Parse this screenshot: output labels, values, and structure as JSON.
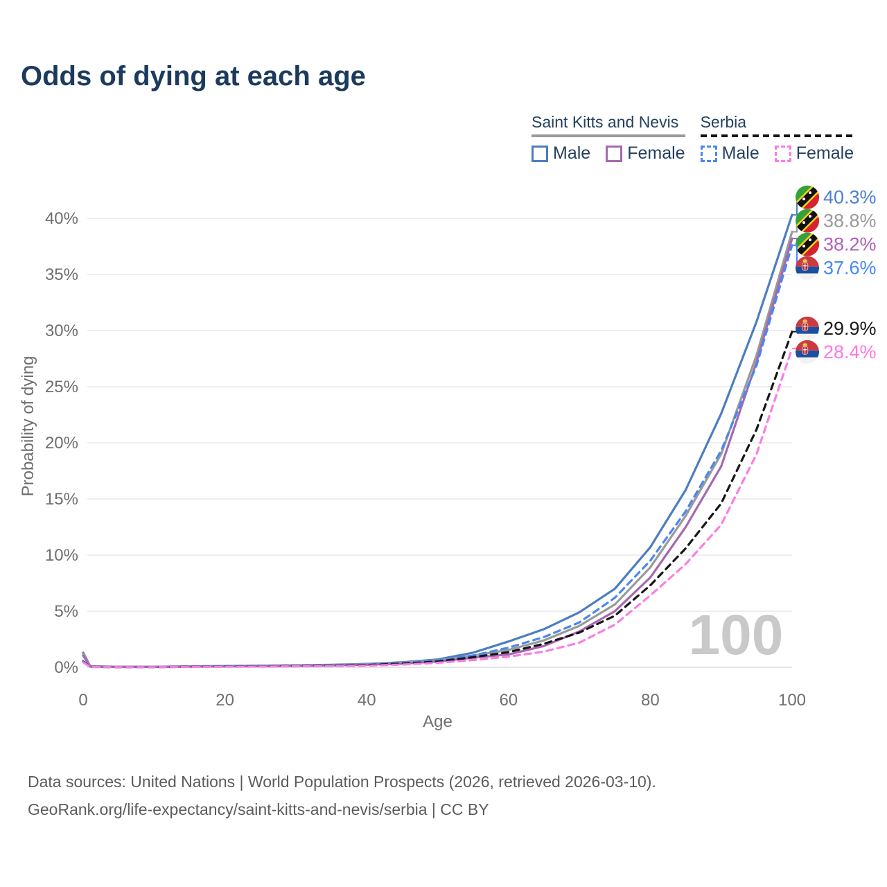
{
  "title": "Odds of dying at each age",
  "legend": {
    "groups": [
      {
        "name": "Saint Kitts and Nevis",
        "line_style": "solid",
        "underline_color": "#9a9a9a",
        "items": [
          {
            "label": "Male",
            "color": "#4d7dbf"
          },
          {
            "label": "Female",
            "color": "#a569ae"
          }
        ]
      },
      {
        "name": "Serbia",
        "line_style": "dashed",
        "underline_color": "#141414",
        "items": [
          {
            "label": "Male",
            "color": "#4b87f0"
          },
          {
            "label": "Female",
            "color": "#fb7de4"
          }
        ]
      }
    ]
  },
  "watermark": "100",
  "axes": {
    "x_label": "Age",
    "y_label": "Probability of dying",
    "x_ticks": [
      0,
      20,
      40,
      60,
      80,
      100
    ],
    "x_tick_labels": [
      "0",
      "20",
      "40",
      "60",
      "80",
      "100"
    ],
    "y_ticks": [
      0,
      5,
      10,
      15,
      20,
      25,
      30,
      35,
      40
    ],
    "y_tick_labels": [
      "0%",
      "5%",
      "10%",
      "15%",
      "20%",
      "25%",
      "30%",
      "35%",
      "40%"
    ]
  },
  "chart_data": {
    "type": "line",
    "title": "Odds of dying at each age",
    "xlabel": "Age",
    "ylabel": "Probability of dying",
    "xlim": [
      0,
      100
    ],
    "ylim_pct": [
      0,
      42
    ],
    "grid": "horizontal-only",
    "legend_position": "top-right",
    "x": [
      0,
      1,
      5,
      10,
      15,
      20,
      25,
      30,
      35,
      40,
      45,
      50,
      55,
      60,
      65,
      70,
      75,
      80,
      85,
      90,
      95,
      100
    ],
    "series": [
      {
        "name": "Saint Kitts and Nevis Male",
        "country": "Saint Kitts and Nevis",
        "sex": "Male",
        "style": "solid",
        "color": "#4d7dbf",
        "label_color": "#4c7fd0",
        "flag": "skn",
        "end_label": "40.3%",
        "values": [
          1.3,
          0.09,
          0.05,
          0.05,
          0.08,
          0.12,
          0.15,
          0.18,
          0.22,
          0.3,
          0.45,
          0.7,
          1.3,
          2.3,
          3.4,
          4.9,
          7.0,
          10.7,
          15.8,
          22.6,
          30.8,
          40.3
        ]
      },
      {
        "name": "Saint Kitts and Nevis Both sexes",
        "country": "Saint Kitts and Nevis",
        "sex": "Both",
        "style": "solid",
        "color": "#9a9a9a",
        "label_color": "#9a9a9a",
        "flag": "skn",
        "end_label": "38.8%",
        "values": [
          1.2,
          0.08,
          0.04,
          0.04,
          0.07,
          0.1,
          0.13,
          0.16,
          0.2,
          0.27,
          0.4,
          0.62,
          1.05,
          1.55,
          2.4,
          3.7,
          5.6,
          8.9,
          13.5,
          19.0,
          27.8,
          38.8
        ]
      },
      {
        "name": "Saint Kitts and Nevis Female",
        "country": "Saint Kitts and Nevis",
        "sex": "Female",
        "style": "solid",
        "color": "#a569ae",
        "label_color": "#b15fb8",
        "flag": "skn",
        "end_label": "38.2%",
        "values": [
          1.05,
          0.07,
          0.04,
          0.04,
          0.06,
          0.08,
          0.1,
          0.13,
          0.17,
          0.23,
          0.33,
          0.52,
          0.85,
          1.15,
          1.9,
          3.2,
          5.0,
          8.0,
          12.5,
          17.9,
          27.2,
          38.2
        ]
      },
      {
        "name": "Serbia Male",
        "country": "Serbia",
        "sex": "Male",
        "style": "dashed",
        "color": "#4b87f0",
        "label_color": "#4488f4",
        "flag": "rs",
        "end_label": "37.6%",
        "values": [
          0.55,
          0.05,
          0.03,
          0.03,
          0.06,
          0.09,
          0.11,
          0.13,
          0.17,
          0.24,
          0.38,
          0.6,
          1.05,
          1.75,
          2.7,
          4.0,
          6.2,
          9.5,
          13.9,
          19.3,
          26.9,
          37.6
        ]
      },
      {
        "name": "Serbia Both sexes",
        "country": "Serbia",
        "sex": "Both",
        "style": "dashed",
        "color": "#161616",
        "label_color": "#1a1a1a",
        "flag": "rs",
        "end_label": "29.9%",
        "values": [
          0.5,
          0.04,
          0.02,
          0.02,
          0.05,
          0.07,
          0.09,
          0.11,
          0.14,
          0.2,
          0.32,
          0.52,
          0.9,
          1.35,
          2.1,
          3.1,
          4.6,
          7.3,
          10.6,
          14.6,
          21.2,
          29.9
        ]
      },
      {
        "name": "Serbia Female",
        "country": "Serbia",
        "sex": "Female",
        "style": "dashed",
        "color": "#fb7de4",
        "label_color": "#ff77e2",
        "flag": "rs",
        "end_label": "28.4%",
        "values": [
          0.45,
          0.04,
          0.02,
          0.02,
          0.04,
          0.05,
          0.07,
          0.09,
          0.11,
          0.15,
          0.24,
          0.4,
          0.65,
          0.95,
          1.4,
          2.2,
          3.8,
          6.4,
          9.2,
          12.7,
          19.0,
          28.4
        ]
      }
    ]
  },
  "footer": {
    "line1": "Data sources: United Nations | World Population Prospects (2026, retrieved 2026-03-10).",
    "line2": "GeoRank.org/life-expectancy/saint-kitts-and-nevis/serbia | CC BY"
  },
  "colors": {
    "title": "#1b3a5e",
    "legend_text": "#25405e",
    "axis_text": "#6f6f6f",
    "gridline": "#e8e8e8",
    "zero_gridline": "#dcdcdc",
    "watermark": "#c9c9c9",
    "footer_text": "#5c5c5c"
  }
}
